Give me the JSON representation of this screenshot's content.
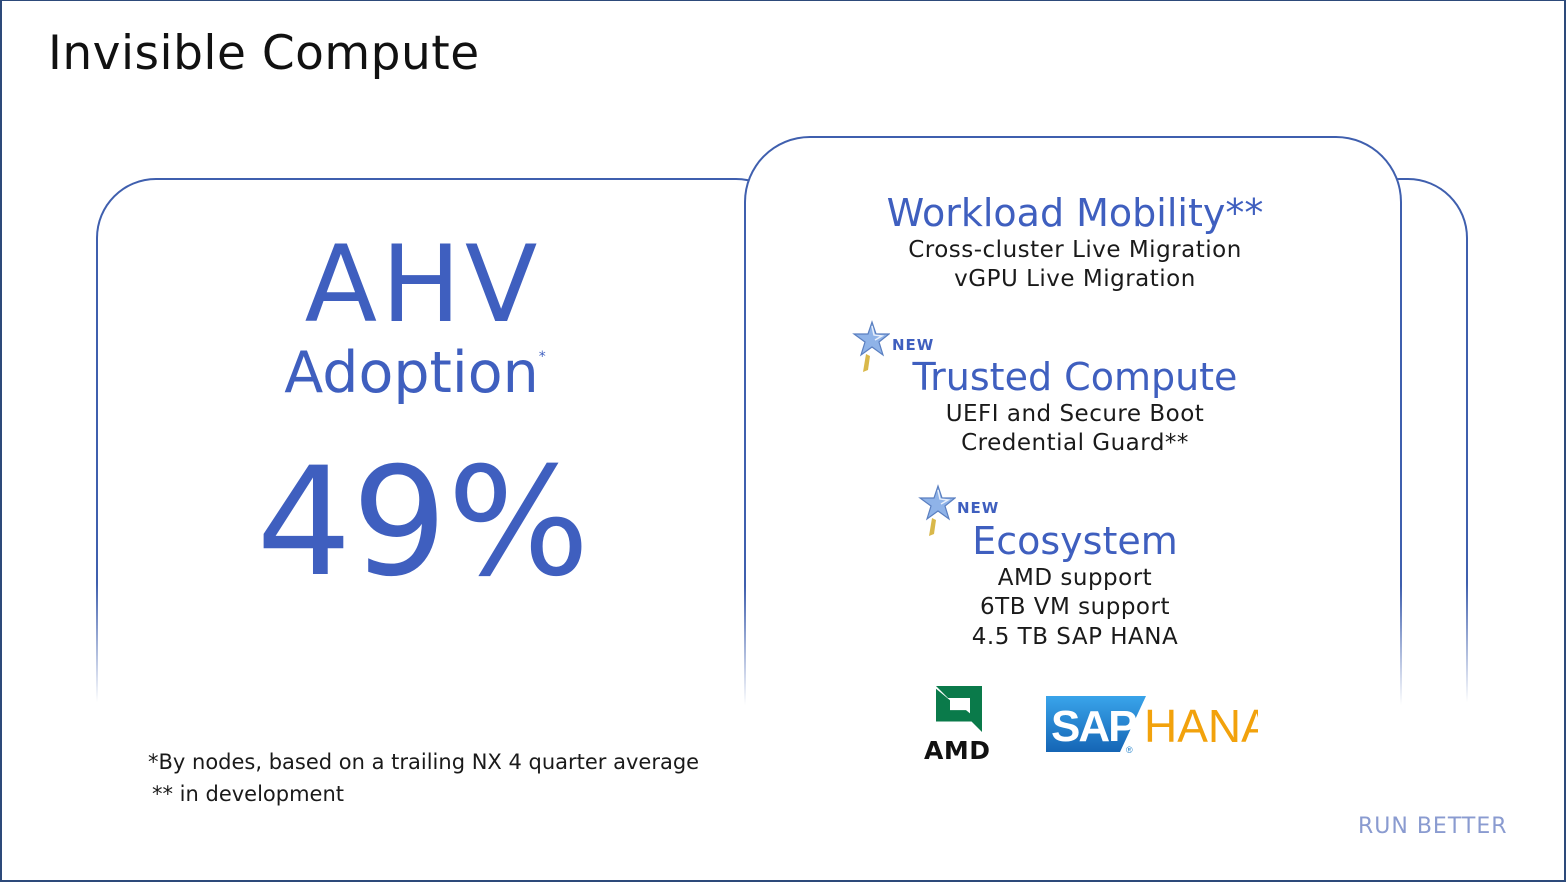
{
  "slide": {
    "title": "Invisible Compute",
    "brand": "RUN BETTER"
  },
  "left_panel": {
    "heading": "AHV",
    "subheading": "Adoption",
    "subheading_mark": "*",
    "value": "49%",
    "footnotes": [
      "*By nodes, based on a trailing NX 4 quarter average",
      "** in development"
    ]
  },
  "right_panel": {
    "sections": [
      {
        "heading": "Workload Mobility**",
        "lines": [
          "Cross-cluster Live Migration",
          "vGPU Live Migration"
        ]
      },
      {
        "badge": "NEW",
        "heading": "Trusted Compute",
        "lines": [
          "UEFI and Secure Boot",
          "Credential Guard**"
        ]
      },
      {
        "badge": "NEW",
        "heading": "Ecosystem",
        "lines": [
          "AMD support",
          "6TB VM support",
          "4.5 TB SAP HANA"
        ]
      }
    ],
    "logos": {
      "amd": "AMD",
      "sap": "SAP",
      "hana": "HANA"
    }
  },
  "colors": {
    "accent": "#3f5fbf",
    "panel_border": "#3f5fae",
    "brand_text": "#8a9bd0",
    "amd_green": "#0a7a4a",
    "sap_blue": "#1f7fc9",
    "hana_orange": "#f2a20c"
  }
}
